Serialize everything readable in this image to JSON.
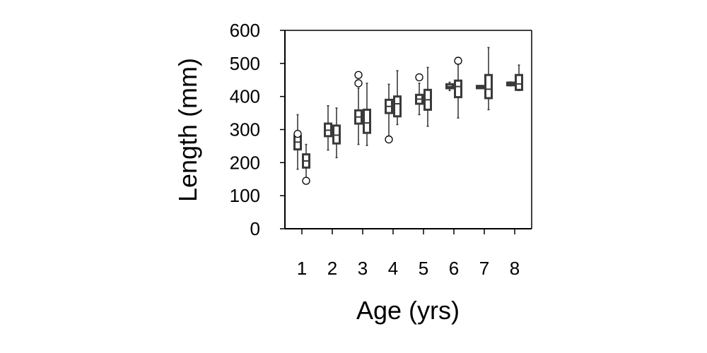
{
  "chart_data": {
    "type": "boxplot",
    "xlabel": "Age (yrs)",
    "ylabel": "Length (mm)",
    "ylim": [
      0,
      600
    ],
    "yticks": [
      0,
      100,
      200,
      300,
      400,
      500,
      600
    ],
    "categories": [
      "1",
      "2",
      "3",
      "4",
      "5",
      "6",
      "7",
      "8"
    ],
    "grid": false,
    "legend": "none",
    "colors": {
      "box_edge": "#3a3a3a",
      "box_fill": "#ffffff",
      "axis": "#000000"
    },
    "series": [
      {
        "boxes": [
          {
            "category": "1",
            "whisker_low": 180,
            "q1": 240,
            "median": 262,
            "q3": 280,
            "whisker_high": 345,
            "outliers": [
              287
            ]
          },
          {
            "category": "2",
            "whisker_low": 238,
            "q1": 280,
            "median": 298,
            "q3": 318,
            "whisker_high": 372,
            "outliers": []
          },
          {
            "category": "3",
            "whisker_low": 255,
            "q1": 318,
            "median": 338,
            "q3": 358,
            "whisker_high": 425,
            "outliers": [
              440,
              465
            ]
          },
          {
            "category": "4",
            "whisker_low": 272,
            "q1": 350,
            "median": 370,
            "q3": 390,
            "whisker_high": 437,
            "outliers": [
              270
            ]
          },
          {
            "category": "5",
            "whisker_low": 345,
            "q1": 378,
            "median": 392,
            "q3": 405,
            "whisker_high": 440,
            "outliers": [
              458
            ]
          },
          {
            "category": "6",
            "whisker_low": 418,
            "q1": 425,
            "median": 430,
            "q3": 437,
            "whisker_high": 443,
            "outliers": []
          },
          {
            "category": "7",
            "whisker_low": 425,
            "q1": 425,
            "median": 428,
            "q3": 432,
            "whisker_high": 432,
            "outliers": []
          },
          {
            "category": "8",
            "whisker_low": 432,
            "q1": 434,
            "median": 438,
            "q3": 442,
            "whisker_high": 444,
            "outliers": []
          }
        ]
      },
      {
        "boxes": [
          {
            "category": "1",
            "whisker_low": 150,
            "q1": 185,
            "median": 205,
            "q3": 225,
            "whisker_high": 255,
            "outliers": [
              145
            ]
          },
          {
            "category": "2",
            "whisker_low": 215,
            "q1": 258,
            "median": 283,
            "q3": 312,
            "whisker_high": 365,
            "outliers": []
          },
          {
            "category": "3",
            "whisker_low": 252,
            "q1": 290,
            "median": 320,
            "q3": 360,
            "whisker_high": 440,
            "outliers": []
          },
          {
            "category": "4",
            "whisker_low": 315,
            "q1": 340,
            "median": 378,
            "q3": 400,
            "whisker_high": 478,
            "outliers": []
          },
          {
            "category": "5",
            "whisker_low": 310,
            "q1": 360,
            "median": 390,
            "q3": 420,
            "whisker_high": 488,
            "outliers": []
          },
          {
            "category": "6",
            "whisker_low": 335,
            "q1": 398,
            "median": 430,
            "q3": 448,
            "whisker_high": 505,
            "outliers": [
              508
            ]
          },
          {
            "category": "7",
            "whisker_low": 360,
            "q1": 395,
            "median": 422,
            "q3": 465,
            "whisker_high": 548,
            "outliers": []
          },
          {
            "category": "8",
            "whisker_low": 418,
            "q1": 420,
            "median": 438,
            "q3": 465,
            "whisker_high": 495,
            "outliers": []
          }
        ]
      }
    ]
  }
}
